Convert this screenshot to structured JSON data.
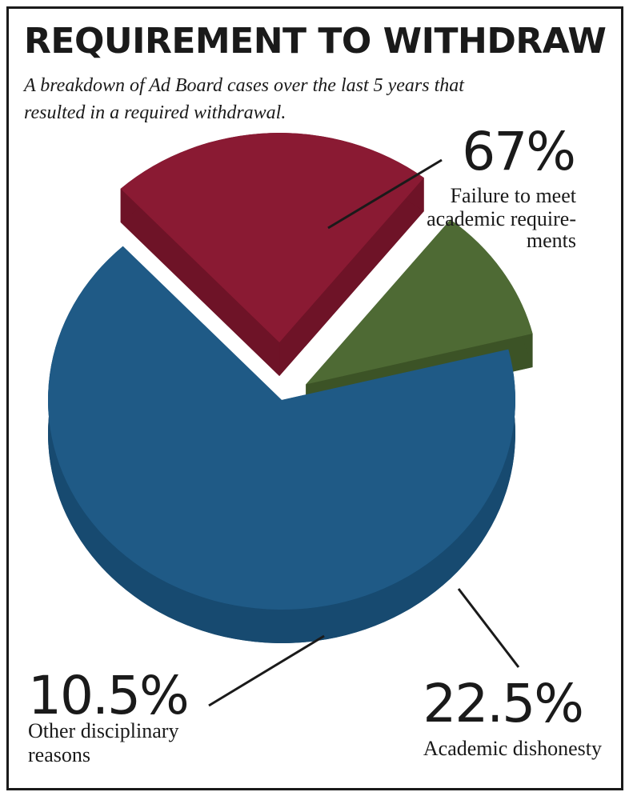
{
  "header": {
    "title": "REQUIREMENT TO WITHDRAW",
    "subtitle": "A breakdown of Ad Board cases over the last 5 years that resulted in a required withdrawal."
  },
  "chart_data": {
    "type": "pie",
    "style": "3d-exploded",
    "title": "REQUIREMENT TO WITHDRAW",
    "subtitle": "A breakdown of Ad Board cases over the last 5 years that resulted in a required withdrawal.",
    "legend": "none",
    "slices": [
      {
        "key": "failure",
        "value": 67,
        "value_label": "67%",
        "label_lines": [
          "Failure to meet",
          "academic require-",
          "ments"
        ],
        "color": "#1f5a86",
        "side_color": "#174a70"
      },
      {
        "key": "dishonesty",
        "value": 22.5,
        "value_label": "22.5%",
        "label_lines": [
          "Academic dishonesty"
        ],
        "color": "#8a1a33",
        "side_color": "#6e1327"
      },
      {
        "key": "other",
        "value": 10.5,
        "value_label": "10.5%",
        "label_lines": [
          "Other disciplinary",
          "reasons"
        ],
        "color": "#4e6a34",
        "side_color": "#3c5326"
      }
    ]
  }
}
